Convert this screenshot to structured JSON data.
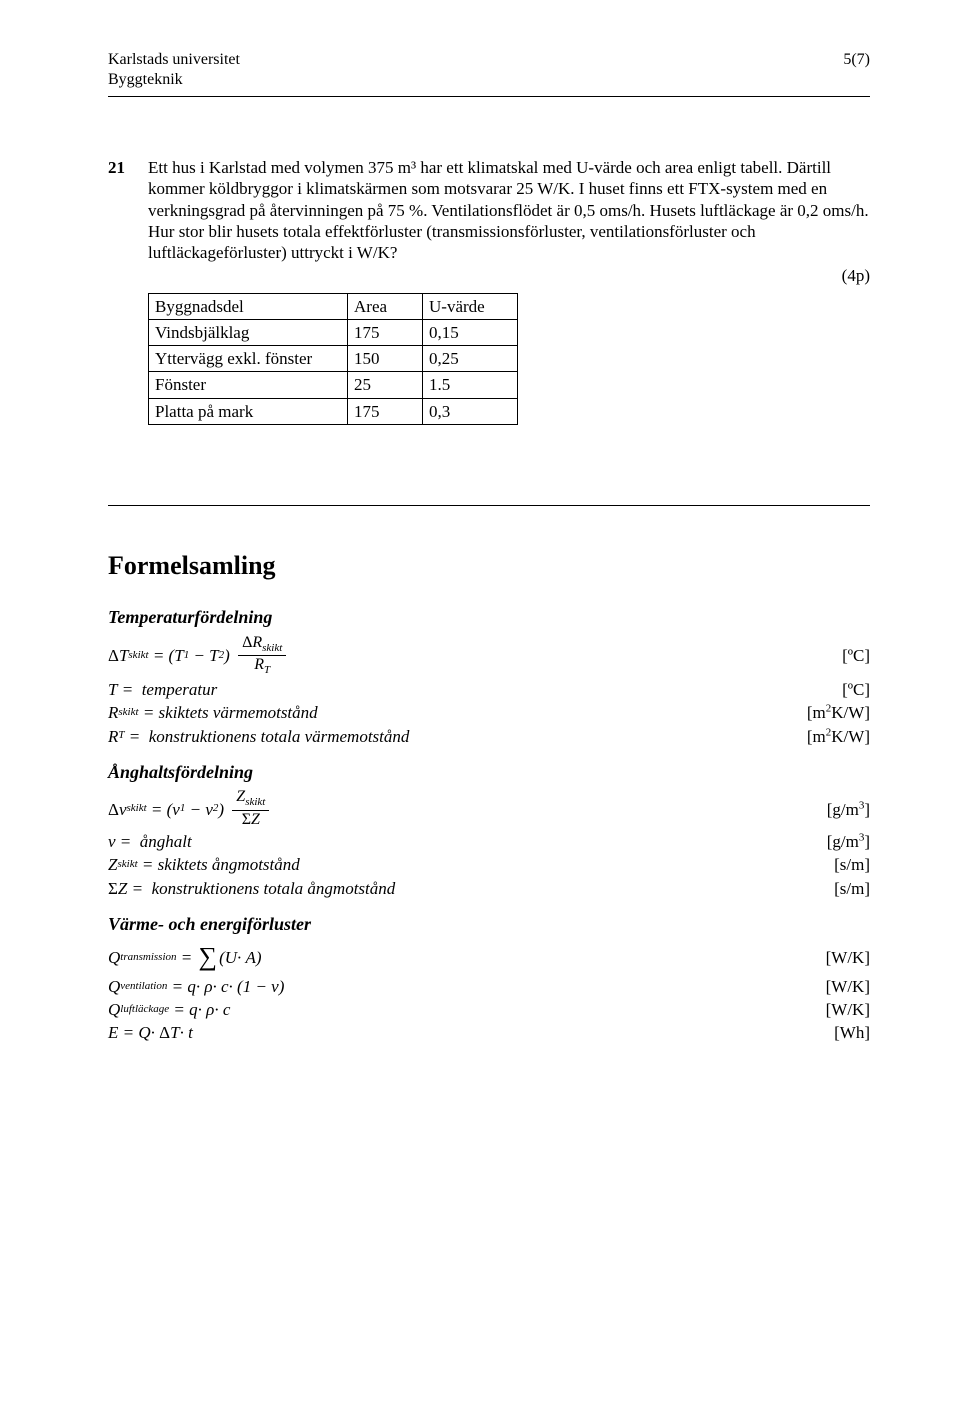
{
  "header": {
    "left_line1": "Karlstads universitet",
    "left_line2": "Byggteknik",
    "right": "5(7)"
  },
  "question": {
    "number": "21",
    "text": "Ett hus i Karlstad med volymen 375 m³ har ett klimatskal med U-värde och area enligt tabell. Därtill kommer köldbryggor i klimatskärmen som motsvarar 25 W/K. I huset finns ett FTX-system med en verkningsgrad på återvinningen på 75 %. Ventilationsflödet är 0,5 oms/h. Husets luftläckage är 0,2 oms/h. Hur stor blir husets totala effektförluster (transmissionsförluster, ventilationsförluster och luftläckageförluster) uttryckt i W/K?",
    "points": "(4p)"
  },
  "table": {
    "headers": [
      "Byggnadsdel",
      "Area",
      "U-värde"
    ],
    "rows": [
      [
        "Vindsbjälklag",
        "175",
        "0,15"
      ],
      [
        "Yttervägg exkl. fönster",
        "150",
        "0,25"
      ],
      [
        "Fönster",
        "25",
        "1.5"
      ],
      [
        "Platta på mark",
        "175",
        "0,3"
      ]
    ]
  },
  "formelsamling": {
    "title": "Formelsamling",
    "temp": {
      "heading": "Temperaturfördelning",
      "eq_unit": "[ºC]",
      "defs": [
        {
          "lhs": "T =",
          "desc": "temperatur",
          "unit": "[ºC]"
        },
        {
          "lhs": "Rskikt =",
          "desc": "skiktets värmemotstånd",
          "unit": "[m²K/W]"
        },
        {
          "lhs": "RT =",
          "desc": "konstruktionens totala värmemotstånd",
          "unit": "[m²K/W]"
        }
      ]
    },
    "ang": {
      "heading": "Ånghaltsfördelning",
      "eq_unit": "[g/m³]",
      "defs": [
        {
          "lhs": "v =",
          "desc": "ånghalt",
          "unit": "[g/m³]"
        },
        {
          "lhs": "Zskikt =",
          "desc": "skiktets ångmotstånd",
          "unit": "[s/m]"
        },
        {
          "lhs": "ΣZ =",
          "desc": "konstruktionens totala ångmotstånd",
          "unit": "[s/m]"
        }
      ]
    },
    "varme": {
      "heading": "Värme- och energiförluster",
      "rows": [
        {
          "unit": "[W/K]"
        },
        {
          "unit": "[W/K]"
        },
        {
          "unit": "[W/K]"
        },
        {
          "unit": "[Wh]"
        }
      ]
    }
  }
}
